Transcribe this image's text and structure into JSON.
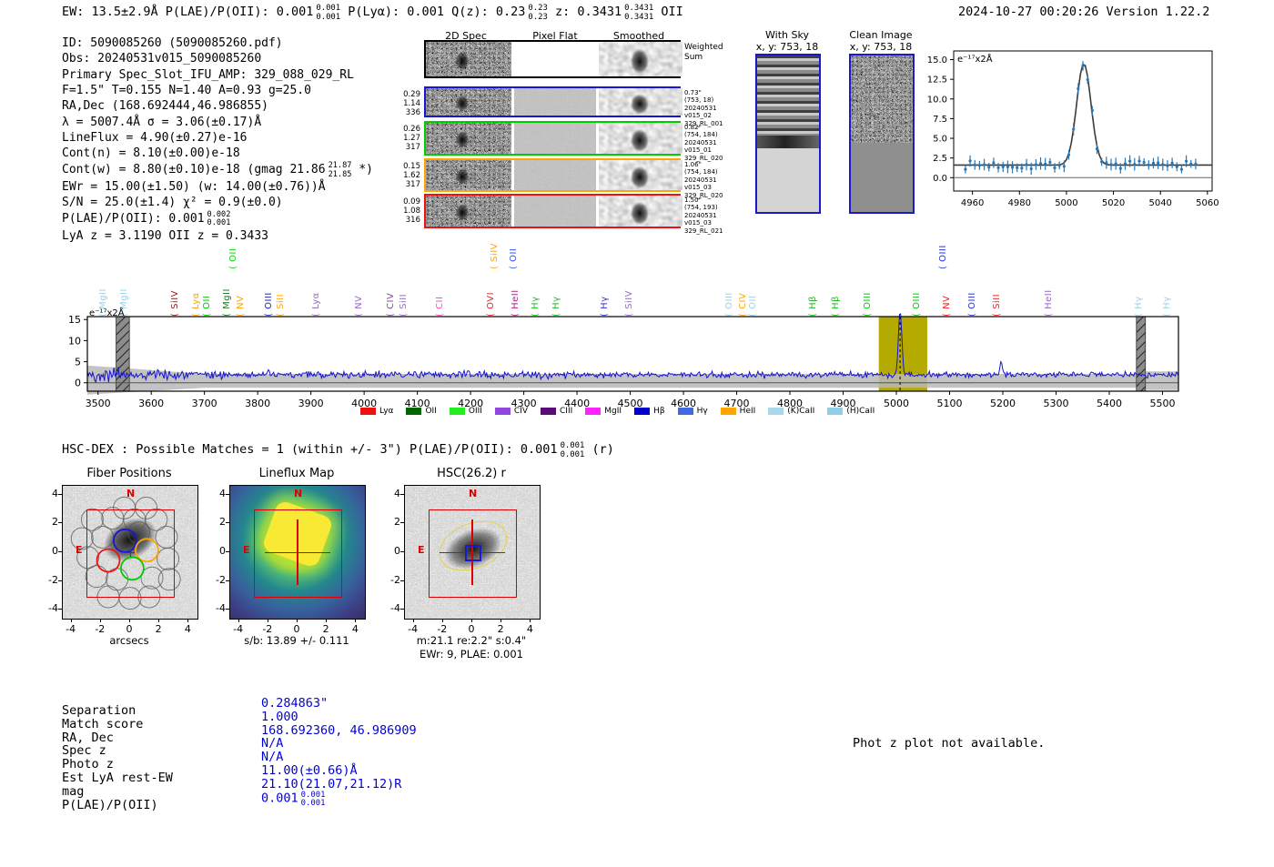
{
  "header": {
    "left_segments": [
      {
        "t": "EW: 13.5±2.9Å  P(LAE)/P(OII): 0.001"
      },
      {
        "frac": [
          "0.001",
          "0.001"
        ]
      },
      {
        "t": "  P(Lyα): 0.001  Q(z): 0.23"
      },
      {
        "frac": [
          "0.23",
          "0.23"
        ]
      },
      {
        "t": "  z: 0.3431"
      },
      {
        "frac": [
          "0.3431",
          "0.3431"
        ]
      },
      {
        "t": " OII"
      }
    ],
    "timestamp": "2024-10-27 00:20:26  Version 1.22.2"
  },
  "info_lines": [
    "ID: 5090085260 (5090085260.pdf)",
    "Obs: 20240531v015_5090085260",
    "Primary Spec_Slot_IFU_AMP: 329_088_029_RL",
    "F=1.5\"  T=0.155  N=1.40  A=0.93  g=25.0",
    "RA,Dec (168.692444,46.986855)",
    "λ = 5007.4Å   σ = 3.06(±0.17)Å",
    "LineFlux = 4.90(±0.27)e-16",
    "Cont(n) = 8.10(±0.00)e-18",
    {
      "pre": "Cont(w) = 8.80(±0.10)e-18 (gmag 21.86",
      "sup": "21.87",
      "sub": "21.85",
      "post": " *)"
    },
    "EWr = 15.00(±1.50) (w: 14.00(±0.76))Å",
    "S/N = 25.0(±1.4)   χ² = 0.9(±0.0)",
    {
      "pre": "P(LAE)/P(OII): 0.001",
      "sup": "0.002",
      "sub": "0.001",
      "post": ""
    },
    "LyA z = 3.1190  OII z = 0.3433"
  ],
  "spec2d": {
    "col_headers": [
      "2D Spec",
      "Pixel Flat",
      "Smoothed"
    ],
    "rows": [
      {
        "color": "#000000",
        "left": [],
        "right": [
          "Weighted",
          "Sum"
        ],
        "sum": true
      },
      {
        "color": "#1515dd",
        "left": [
          "0.29",
          "1.14",
          "336"
        ],
        "right": [
          "0.73\"",
          "(753, 18)",
          "20240531",
          "v015_02",
          "329_RL_001"
        ]
      },
      {
        "color": "#00cc00",
        "left": [
          "0.26",
          "1.27",
          "317"
        ],
        "right": [
          "0.82\"",
          "(754, 184)",
          "20240531",
          "v015_01",
          "329_RL_020"
        ]
      },
      {
        "color": "#ffa500",
        "left": [
          "0.15",
          "1.62",
          "317"
        ],
        "right": [
          "1.06\"",
          "(754, 184)",
          "20240531",
          "v015_03",
          "329_RL_020"
        ]
      },
      {
        "color": "#ee1111",
        "left": [
          "0.09",
          "1.08",
          "316"
        ],
        "right": [
          "1.50\"",
          "(754, 193)",
          "20240531",
          "v015_03",
          "329_RL_021"
        ]
      }
    ]
  },
  "sky_panels": {
    "with_sky": {
      "title": "With Sky",
      "subtitle": "x, y: 753, 18"
    },
    "clean": {
      "title": "Clean Image",
      "subtitle": "x, y: 753, 18"
    }
  },
  "hsc_dex_segments": [
    {
      "t": "HSC-DEX : Possible Matches = 1 (within +/- 3\")  P(LAE)/P(OII): 0.001"
    },
    {
      "frac": [
        "0.001",
        "0.001"
      ]
    },
    {
      "t": " (r)"
    }
  ],
  "cutouts": {
    "fiber": {
      "title": "Fiber Positions",
      "xlabel": "arcsecs",
      "north": "N",
      "east": "E",
      "x_ticks": [
        "-4",
        "-2",
        "0",
        "2",
        "4"
      ],
      "y_ticks": [
        "4",
        "2",
        "0",
        "-2",
        "-4"
      ]
    },
    "lineflux": {
      "title": "Lineflux Map",
      "xlabel": "s/b: 13.89 +/- 0.111",
      "north": "N",
      "east": "E",
      "x_ticks": [
        "-4",
        "-2",
        "0",
        "2",
        "4"
      ],
      "y_ticks": [
        "4",
        "2",
        "0",
        "-2",
        "-4"
      ]
    },
    "hsc": {
      "title": "HSC(26.2) r",
      "xlabel": "m:21.1 re:2.2\" s:0.4\"",
      "xlabel2": "EWr: 9, PLAE: 0.001",
      "north": "N",
      "east": "E",
      "x_ticks": [
        "-4",
        "-2",
        "0",
        "2",
        "4"
      ],
      "y_ticks": [
        "4",
        "2",
        "0",
        "-2",
        "-4"
      ]
    }
  },
  "match_table": {
    "rows": [
      {
        "label": "Separation",
        "value": "0.284863\""
      },
      {
        "label": "Match score",
        "value": "1.000"
      },
      {
        "label": "RA, Dec",
        "value": "168.692360, 46.986909"
      },
      {
        "label": "Spec z",
        "value": "N/A"
      },
      {
        "label": "Photo z",
        "value": "N/A"
      },
      {
        "label": "Est LyA rest-EW",
        "value": "11.00(±0.66)Å"
      },
      {
        "label": "mag",
        "value": "21.10(21.07,21.12)R"
      },
      {
        "label": "P(LAE)/P(OII)",
        "value": "0.001",
        "sup": "0.001",
        "sub": "0.001"
      }
    ],
    "value_color": "#0000dd"
  },
  "phot_z_note": "Phot z plot not available.",
  "chart_data": [
    {
      "id": "line_fit_plot",
      "type": "scatter",
      "title": "",
      "ylabel_inset": "e⁻¹⁷x2Å",
      "xlim": [
        4952,
        5062
      ],
      "ylim": [
        -1.7,
        16.1
      ],
      "x_ticks": [
        4960,
        4980,
        5000,
        5020,
        5040,
        5060
      ],
      "y_ticks": [
        "0.0",
        "2.5",
        "5.0",
        "7.5",
        "10.0",
        "12.5",
        "15.0"
      ],
      "fit": {
        "center": 5007.4,
        "sigma": 3.06,
        "amplitude": 12.9,
        "baseline": 1.6
      },
      "point_color": "#2878b8",
      "curve_color": "#3a3a3a",
      "grid": false
    },
    {
      "id": "full_spectrum",
      "type": "line",
      "ylabel_inset": "e⁻¹⁷x2Å",
      "xlim": [
        3480,
        5530
      ],
      "ylim": [
        -2,
        15.7
      ],
      "x_ticks": [
        3500,
        3600,
        3700,
        3800,
        3900,
        4000,
        4100,
        4200,
        4300,
        4400,
        4500,
        4600,
        4700,
        4800,
        4900,
        5000,
        5100,
        5200,
        5300,
        5400,
        5500
      ],
      "y_ticks": [
        0,
        5,
        10,
        15
      ],
      "spectrum_color": "#1414cc",
      "error_band_color": "#b9b9b9",
      "baseline": 1.9,
      "peak": {
        "x": 5007,
        "height": 15,
        "sigma": 3.2
      },
      "secondary_peak": {
        "x": 5197,
        "height": 3.6,
        "sigma": 2.2
      },
      "highlight_band": {
        "x0": 4967,
        "x1": 5058,
        "color": "#b5ab00"
      },
      "dashed_line_x": 5007,
      "masked_bands": [
        [
          3534,
          3559
        ],
        [
          5451,
          5468
        ]
      ],
      "legend": [
        {
          "label": "Lyα",
          "color": "#ee1111"
        },
        {
          "label": "OII",
          "color": "#006400"
        },
        {
          "label": "OIII",
          "color": "#22ee22"
        },
        {
          "label": "CIV",
          "color": "#9146e0"
        },
        {
          "label": "CIII",
          "color": "#5c0a78"
        },
        {
          "label": "MgII",
          "color": "#ff22ff"
        },
        {
          "label": "Hβ",
          "color": "#0000cd"
        },
        {
          "label": "Hγ",
          "color": "#4169e1"
        },
        {
          "label": "HeII",
          "color": "#ffa500"
        },
        {
          "label": "(K)CaII",
          "color": "#a8d8ea"
        },
        {
          "label": "(H)CaII",
          "color": "#8fd0e8"
        }
      ],
      "line_labels": [
        {
          "x": 3520,
          "label": "MgII",
          "color": "#9ad2e6",
          "tall": false
        },
        {
          "x": 3558,
          "label": "MgII",
          "color": "#9ad2e6",
          "tall": false
        },
        {
          "x": 3655,
          "label": "SiIV",
          "color": "#8b1a1a",
          "tall": false
        },
        {
          "x": 3693,
          "label": "Lyα",
          "color": "#ffa500",
          "tall": false
        },
        {
          "x": 3715,
          "label": "OII",
          "color": "#00cc00",
          "tall": false
        },
        {
          "x": 3752,
          "label": "MgII",
          "color": "#1a7a1a",
          "tall": false
        },
        {
          "x": 3764,
          "label": "OII",
          "color": "#00dd00",
          "tall": true
        },
        {
          "x": 3778,
          "label": "NV",
          "color": "#ffa500",
          "tall": false
        },
        {
          "x": 3830,
          "label": "OIII",
          "color": "#2222cc",
          "tall": false
        },
        {
          "x": 3852,
          "label": "SiII",
          "color": "#ffa500",
          "tall": false
        },
        {
          "x": 3920,
          "label": "Lyα",
          "color": "#9966cc",
          "tall": false
        },
        {
          "x": 4000,
          "label": "NV",
          "color": "#9966cc",
          "tall": false
        },
        {
          "x": 4060,
          "label": "CIV",
          "color": "#884499",
          "tall": false
        },
        {
          "x": 4084,
          "label": "SiII",
          "color": "#9966cc",
          "tall": false
        },
        {
          "x": 4152,
          "label": "CII",
          "color": "#ff44cc",
          "tall": false
        },
        {
          "x": 4248,
          "label": "OVI",
          "color": "#ee2222",
          "tall": false
        },
        {
          "x": 4255,
          "label": "SiIV",
          "color": "#ffa500",
          "tall": true
        },
        {
          "x": 4290,
          "label": "OII",
          "color": "#3355ee",
          "tall": true
        },
        {
          "x": 4293,
          "label": "HeII",
          "color": "#aa2288",
          "tall": false
        },
        {
          "x": 4332,
          "label": "Hγ",
          "color": "#22bb22",
          "tall": false
        },
        {
          "x": 4370,
          "label": "Hγ",
          "color": "#22bb22",
          "tall": false
        },
        {
          "x": 4462,
          "label": "Hγ",
          "color": "#3333cc",
          "tall": false
        },
        {
          "x": 4508,
          "label": "SiIV",
          "color": "#9966cc",
          "tall": false
        },
        {
          "x": 4695,
          "label": "OIII",
          "color": "#9ad2e6",
          "tall": false
        },
        {
          "x": 4722,
          "label": "CIV",
          "color": "#ffa500",
          "tall": false
        },
        {
          "x": 4740,
          "label": "OII",
          "color": "#9ad2e6",
          "tall": false
        },
        {
          "x": 4852,
          "label": "Hβ",
          "color": "#22bb22",
          "tall": false
        },
        {
          "x": 4895,
          "label": "Hβ",
          "color": "#22bb22",
          "tall": false
        },
        {
          "x": 4955,
          "label": "OIII",
          "color": "#00cc00",
          "tall": false
        },
        {
          "x": 5048,
          "label": "OIII",
          "color": "#00cc00",
          "tall": false
        },
        {
          "x": 5098,
          "label": "OIII",
          "color": "#2233dd",
          "tall": true
        },
        {
          "x": 5104,
          "label": "NV",
          "color": "#ee2222",
          "tall": false
        },
        {
          "x": 5152,
          "label": "OIII",
          "color": "#2233dd",
          "tall": false
        },
        {
          "x": 5198,
          "label": "SiII",
          "color": "#ee2222",
          "tall": false
        },
        {
          "x": 5295,
          "label": "HeII",
          "color": "#9966cc",
          "tall": false
        },
        {
          "x": 5465,
          "label": "Hγ",
          "color": "#9ad2e6",
          "tall": false
        },
        {
          "x": 5518,
          "label": "Hγ",
          "color": "#9ad2e6",
          "tall": false
        }
      ]
    }
  ]
}
